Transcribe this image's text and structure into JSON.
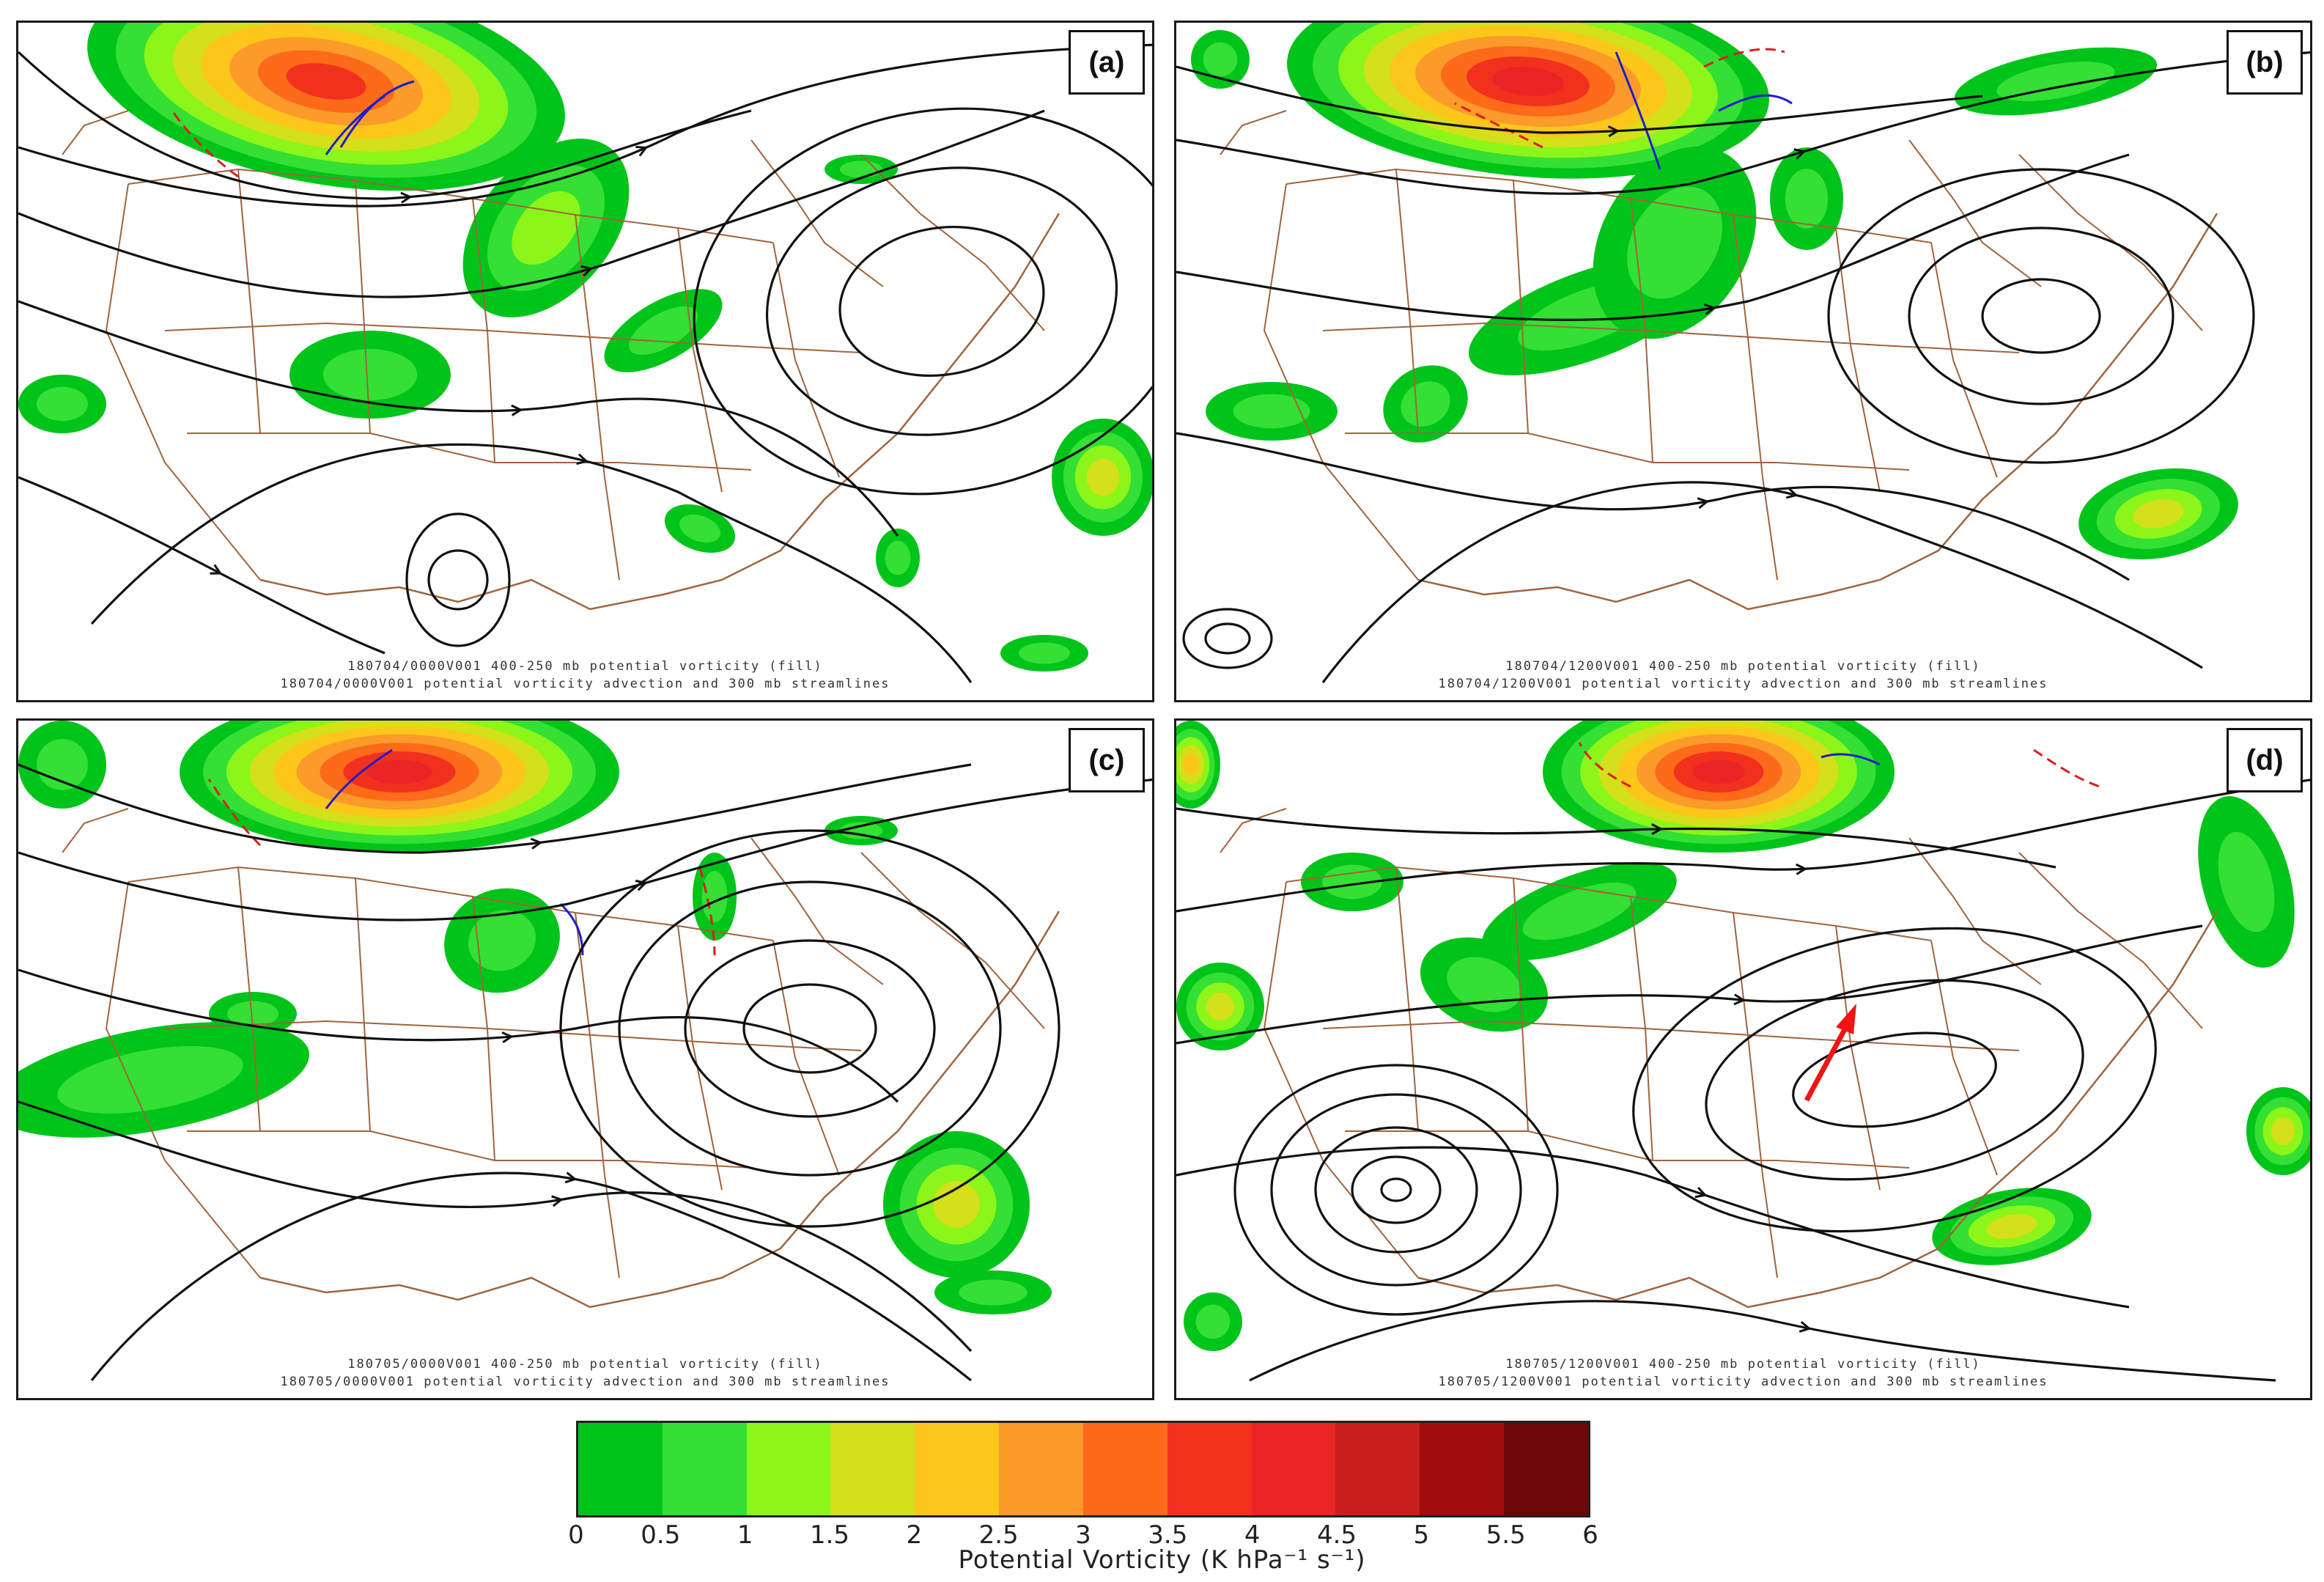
{
  "figure": {
    "panels": [
      {
        "label": "(a)",
        "caption_line1": "180704/0000V001 400-250 mb potential vorticity (fill)",
        "caption_line2": "180704/0000V001 potential vorticity advection and 300 mb streamlines"
      },
      {
        "label": "(b)",
        "caption_line1": "180704/1200V001 400-250 mb potential vorticity (fill)",
        "caption_line2": "180704/1200V001 potential vorticity advection and 300 mb streamlines"
      },
      {
        "label": "(c)",
        "caption_line1": "180705/0000V001 400-250 mb potential vorticity (fill)",
        "caption_line2": "180705/0000V001 potential vorticity advection and 300 mb streamlines"
      },
      {
        "label": "(d)",
        "caption_line1": "180705/1200V001 400-250 mb potential vorticity (fill)",
        "caption_line2": "180705/1200V001 potential vorticity advection and 300 mb streamlines"
      }
    ],
    "colorbar": {
      "title": "Potential Vorticity (K hPa⁻¹ s⁻¹)",
      "ticks": [
        "0",
        "0.5",
        "1",
        "1.5",
        "2",
        "2.5",
        "3",
        "3.5",
        "4",
        "4.5",
        "5",
        "5.5",
        "6"
      ],
      "colors": [
        "#00c41a",
        "#33e033",
        "#8cf51a",
        "#d4e01a",
        "#fcc71a",
        "#fc9a2a",
        "#fc6a1a",
        "#f2301e",
        "#ea2424",
        "#c81e1e",
        "#a00c0c",
        "#6e0808"
      ]
    },
    "colors": {
      "streamline": "#111111",
      "borders": "#a0643c",
      "pv_advection_positive": "#1e1ec8",
      "pv_advection_negative": "#dc1e1e",
      "annotation_arrow": "#f01414"
    }
  }
}
